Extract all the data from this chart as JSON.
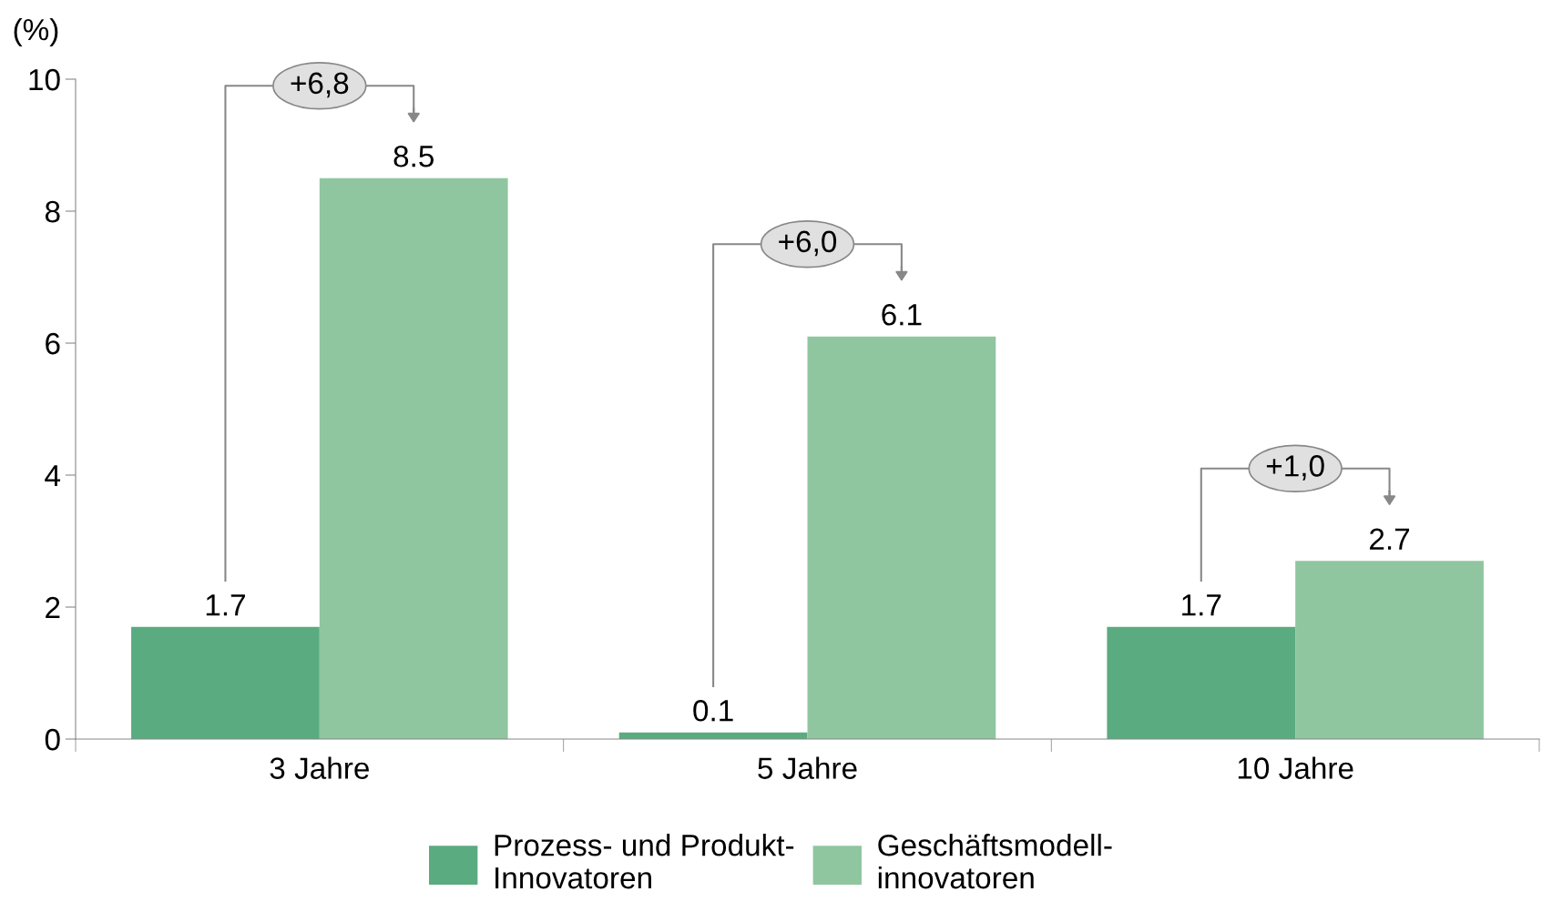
{
  "chart_data": {
    "type": "bar",
    "ylabel": "(%)",
    "categories": [
      "3 Jahre",
      "5 Jahre",
      "10 Jahre"
    ],
    "series": [
      {
        "name": "Prozess- und Produkt-\nInnovatoren",
        "color": "#5aab80",
        "values": [
          1.7,
          0.1,
          1.7
        ]
      },
      {
        "name": "Geschäftsmodell-\ninnovatoren",
        "color": "#8fc6a0",
        "values": [
          8.5,
          6.1,
          2.7
        ]
      }
    ],
    "ylim": [
      0,
      10
    ],
    "yticks": [
      0,
      2,
      4,
      6,
      8,
      10
    ],
    "data_labels": true,
    "grid": false,
    "legend": "bottom",
    "annotations": [
      "+6,8",
      "+6,0",
      "+1,0"
    ]
  }
}
